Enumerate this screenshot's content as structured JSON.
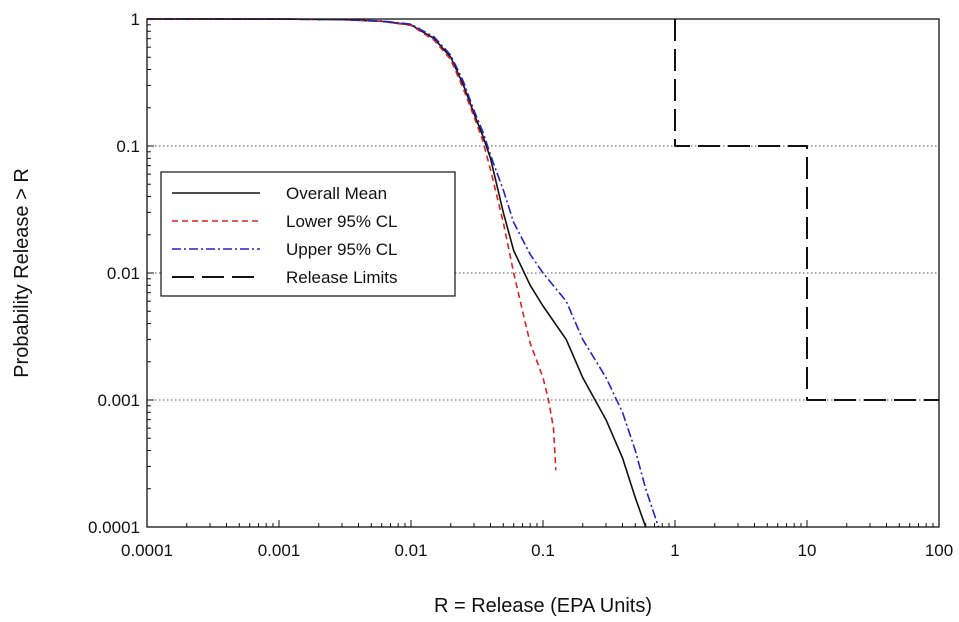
{
  "chart_data": {
    "type": "line",
    "title": "",
    "xlabel": "R = Release (EPA Units)",
    "ylabel": "Probability Release > R",
    "xscale": "log",
    "yscale": "log",
    "xlim": [
      0.0001,
      100
    ],
    "ylim": [
      0.0001,
      1
    ],
    "x_ticks": [
      "0.0001",
      "0.001",
      "0.01",
      "0.1",
      "1",
      "10",
      "100"
    ],
    "y_ticks": [
      "0.0001",
      "0.001",
      "0.01",
      "0.1",
      "1"
    ],
    "grid": "horizontal dotted at 0.1, 0.01, 0.001",
    "legend_position": "left",
    "series": [
      {
        "name": "Overall Mean",
        "color": "#111111",
        "dash": "solid",
        "points": [
          [
            0.0001,
            1
          ],
          [
            0.001,
            0.999
          ],
          [
            0.003,
            0.99
          ],
          [
            0.006,
            0.96
          ],
          [
            0.01,
            0.9
          ],
          [
            0.015,
            0.7
          ],
          [
            0.02,
            0.5
          ],
          [
            0.025,
            0.3
          ],
          [
            0.03,
            0.18
          ],
          [
            0.035,
            0.12
          ],
          [
            0.04,
            0.08
          ],
          [
            0.05,
            0.03
          ],
          [
            0.06,
            0.015
          ],
          [
            0.08,
            0.008
          ],
          [
            0.1,
            0.0055
          ],
          [
            0.15,
            0.003
          ],
          [
            0.2,
            0.0015
          ],
          [
            0.3,
            0.0007
          ],
          [
            0.4,
            0.00035
          ],
          [
            0.5,
            0.00017
          ],
          [
            0.6,
            0.0001
          ]
        ]
      },
      {
        "name": "Lower 95% CL",
        "color": "#dd2222",
        "dash": "dashed",
        "points": [
          [
            0.0001,
            1
          ],
          [
            0.001,
            0.999
          ],
          [
            0.003,
            0.99
          ],
          [
            0.006,
            0.96
          ],
          [
            0.01,
            0.89
          ],
          [
            0.015,
            0.68
          ],
          [
            0.02,
            0.48
          ],
          [
            0.025,
            0.28
          ],
          [
            0.03,
            0.17
          ],
          [
            0.035,
            0.11
          ],
          [
            0.04,
            0.065
          ],
          [
            0.05,
            0.025
          ],
          [
            0.06,
            0.01
          ],
          [
            0.07,
            0.005
          ],
          [
            0.08,
            0.0028
          ],
          [
            0.1,
            0.0015
          ],
          [
            0.11,
            0.001
          ],
          [
            0.12,
            0.0006
          ],
          [
            0.125,
            0.00028
          ]
        ]
      },
      {
        "name": "Upper 95% CL",
        "color": "#2222cc",
        "dash": "dashdot",
        "points": [
          [
            0.0001,
            1
          ],
          [
            0.001,
            0.999
          ],
          [
            0.003,
            0.99
          ],
          [
            0.006,
            0.965
          ],
          [
            0.01,
            0.91
          ],
          [
            0.015,
            0.72
          ],
          [
            0.02,
            0.52
          ],
          [
            0.025,
            0.32
          ],
          [
            0.03,
            0.19
          ],
          [
            0.035,
            0.13
          ],
          [
            0.04,
            0.085
          ],
          [
            0.05,
            0.045
          ],
          [
            0.06,
            0.025
          ],
          [
            0.08,
            0.014
          ],
          [
            0.1,
            0.01
          ],
          [
            0.15,
            0.006
          ],
          [
            0.2,
            0.003
          ],
          [
            0.3,
            0.0015
          ],
          [
            0.4,
            0.0008
          ],
          [
            0.5,
            0.0004
          ],
          [
            0.6,
            0.0002
          ],
          [
            0.75,
            0.0001
          ]
        ]
      },
      {
        "name": "Release Limits",
        "color": "#111111",
        "dash": "longdash",
        "points": [
          [
            1,
            1
          ],
          [
            1,
            0.1
          ],
          [
            10,
            0.1
          ],
          [
            10,
            0.001
          ],
          [
            100,
            0.001
          ]
        ]
      }
    ]
  }
}
